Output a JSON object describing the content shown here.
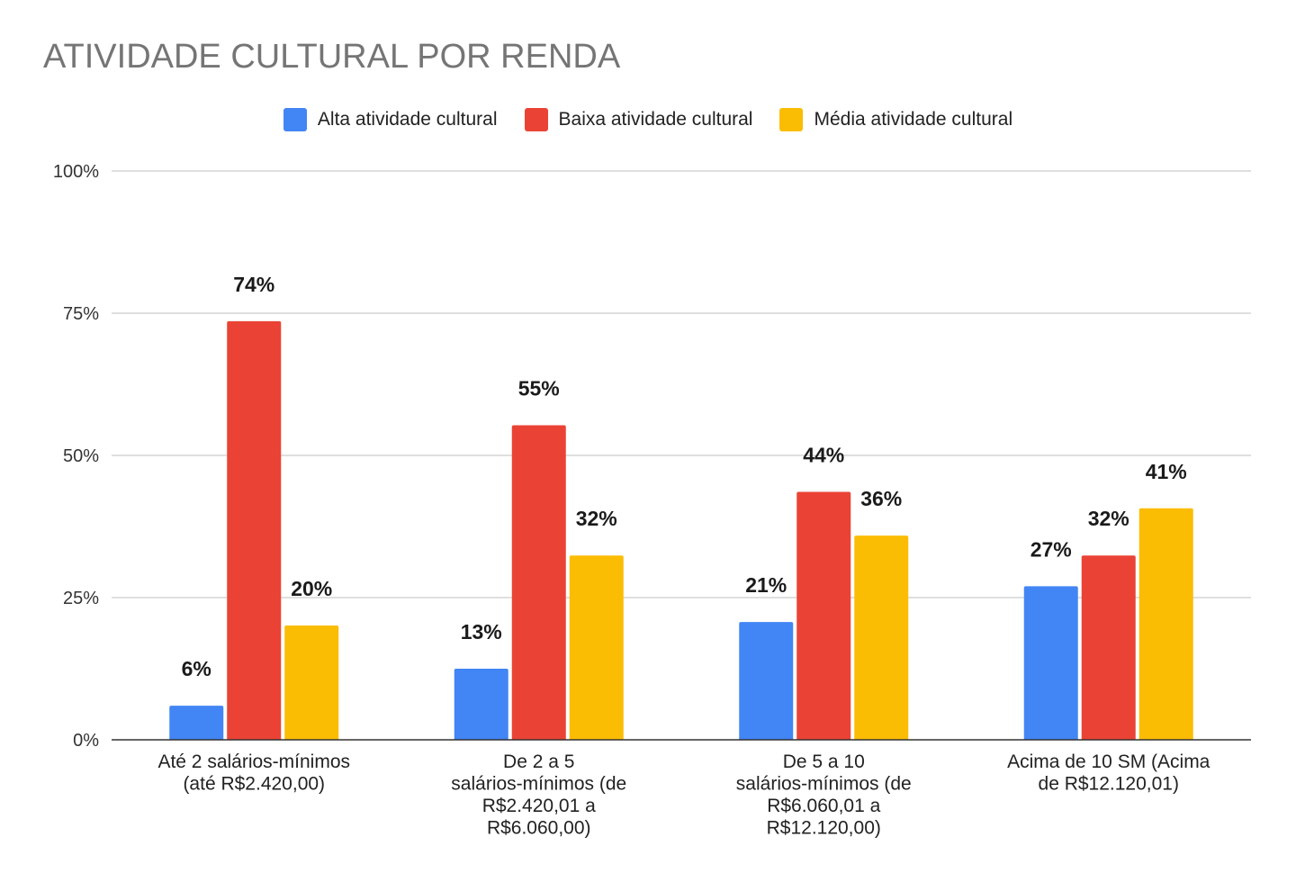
{
  "chart_data": {
    "type": "bar",
    "title": "ATIVIDADE CULTURAL POR RENDA",
    "xlabel": "",
    "ylabel": "",
    "ylim": [
      0,
      100
    ],
    "yticks": [
      "0%",
      "25%",
      "50%",
      "75%",
      "100%"
    ],
    "ytick_values": [
      0,
      25,
      50,
      75,
      100
    ],
    "grid": true,
    "legend_position": "top",
    "categories": [
      [
        "Até 2 salários-mínimos",
        "(até R$2.420,00)"
      ],
      [
        "De 2 a 5",
        "salários-mínimos (de",
        "R$2.420,01 a",
        "R$6.060,00)"
      ],
      [
        "De 5 a 10",
        "salários-mínimos (de",
        "R$6.060,01 a",
        "R$12.120,00)"
      ],
      [
        "Acima de 10 SM (Acima",
        "de R$12.120,01)"
      ]
    ],
    "series": [
      {
        "name": "Alta atividade cultural",
        "color": "#4285f4",
        "values": [
          6,
          12.5,
          20.7,
          27
        ],
        "labels": [
          "6%",
          "13%",
          "21%",
          "27%"
        ]
      },
      {
        "name": "Baixa atividade cultural",
        "color": "#ea4335",
        "values": [
          73.6,
          55.3,
          43.6,
          32.4
        ],
        "labels": [
          "74%",
          "55%",
          "44%",
          "32%"
        ]
      },
      {
        "name": "Média atividade cultural",
        "color": "#fbbc04",
        "values": [
          20.1,
          32.4,
          35.9,
          40.7
        ],
        "labels": [
          "20%",
          "32%",
          "36%",
          "41%"
        ]
      }
    ]
  }
}
